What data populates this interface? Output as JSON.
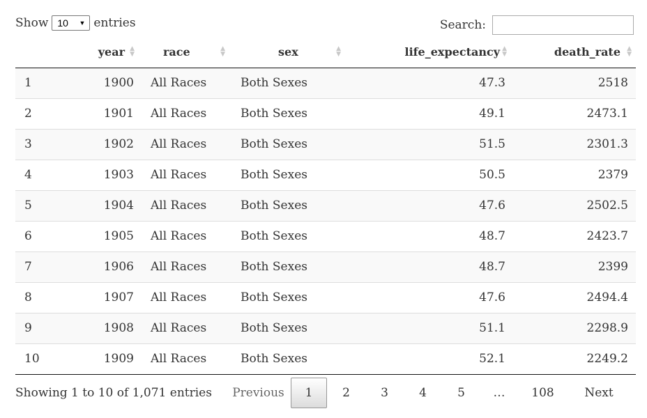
{
  "length": {
    "prefix": "Show",
    "selected": "10",
    "suffix": "entries"
  },
  "search": {
    "label": "Search:",
    "value": ""
  },
  "columns": [
    "year",
    "race",
    "sex",
    "life_expectancy",
    "death_rate"
  ],
  "rows": [
    {
      "idx": "1",
      "year": "1900",
      "race": "All Races",
      "sex": "Both Sexes",
      "life_expectancy": "47.3",
      "death_rate": "2518"
    },
    {
      "idx": "2",
      "year": "1901",
      "race": "All Races",
      "sex": "Both Sexes",
      "life_expectancy": "49.1",
      "death_rate": "2473.1"
    },
    {
      "idx": "3",
      "year": "1902",
      "race": "All Races",
      "sex": "Both Sexes",
      "life_expectancy": "51.5",
      "death_rate": "2301.3"
    },
    {
      "idx": "4",
      "year": "1903",
      "race": "All Races",
      "sex": "Both Sexes",
      "life_expectancy": "50.5",
      "death_rate": "2379"
    },
    {
      "idx": "5",
      "year": "1904",
      "race": "All Races",
      "sex": "Both Sexes",
      "life_expectancy": "47.6",
      "death_rate": "2502.5"
    },
    {
      "idx": "6",
      "year": "1905",
      "race": "All Races",
      "sex": "Both Sexes",
      "life_expectancy": "48.7",
      "death_rate": "2423.7"
    },
    {
      "idx": "7",
      "year": "1906",
      "race": "All Races",
      "sex": "Both Sexes",
      "life_expectancy": "48.7",
      "death_rate": "2399"
    },
    {
      "idx": "8",
      "year": "1907",
      "race": "All Races",
      "sex": "Both Sexes",
      "life_expectancy": "47.6",
      "death_rate": "2494.4"
    },
    {
      "idx": "9",
      "year": "1908",
      "race": "All Races",
      "sex": "Both Sexes",
      "life_expectancy": "51.1",
      "death_rate": "2298.9"
    },
    {
      "idx": "10",
      "year": "1909",
      "race": "All Races",
      "sex": "Both Sexes",
      "life_expectancy": "52.1",
      "death_rate": "2249.2"
    }
  ],
  "info": "Showing 1 to 10 of 1,071 entries",
  "pagination": {
    "previous": "Previous",
    "pages": [
      "1",
      "2",
      "3",
      "4",
      "5"
    ],
    "ellipsis": "…",
    "last": "108",
    "next": "Next"
  }
}
